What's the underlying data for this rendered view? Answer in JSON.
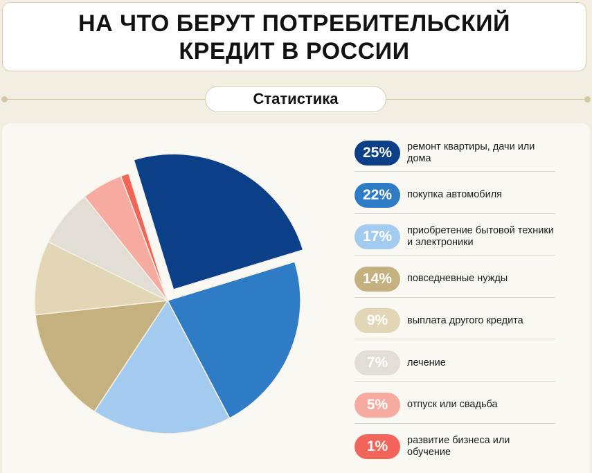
{
  "title": {
    "line1": "НА ЧТО БЕРУТ ПОТРЕБИТЕЛЬСКИЙ",
    "line2": "КРЕДИТ В РОССИИ"
  },
  "subtitle": "Статистика",
  "chart_data": {
    "type": "pie",
    "title": "НА ЧТО БЕРУТ ПОТРЕБИТЕЛЬСКИЙ КРЕДИТ В РОССИИ",
    "subtitle": "Статистика",
    "legend_position": "right",
    "slices": [
      {
        "value": 25,
        "label": "25%",
        "name": "ремонт квартиры, дачи или дома",
        "color": "#0b3f87"
      },
      {
        "value": 22,
        "label": "22%",
        "name": "покупка автомобиля",
        "color": "#2f7cc6"
      },
      {
        "value": 17,
        "label": "17%",
        "name": "приобретение бытовой техники и электроники",
        "color": "#a3cbef"
      },
      {
        "value": 14,
        "label": "14%",
        "name": "повседневные нужды",
        "color": "#c5b080"
      },
      {
        "value": 9,
        "label": "9%",
        "name": "выплата другого кредита",
        "color": "#e3d6b6"
      },
      {
        "value": 7,
        "label": "7%",
        "name": "лечение",
        "color": "#e2ded6"
      },
      {
        "value": 5,
        "label": "5%",
        "name": "отпуск или свадьба",
        "color": "#f7aaa0"
      },
      {
        "value": 1,
        "label": "1%",
        "name": "развитие бизнеса или обучение",
        "color": "#f2655a"
      }
    ]
  }
}
